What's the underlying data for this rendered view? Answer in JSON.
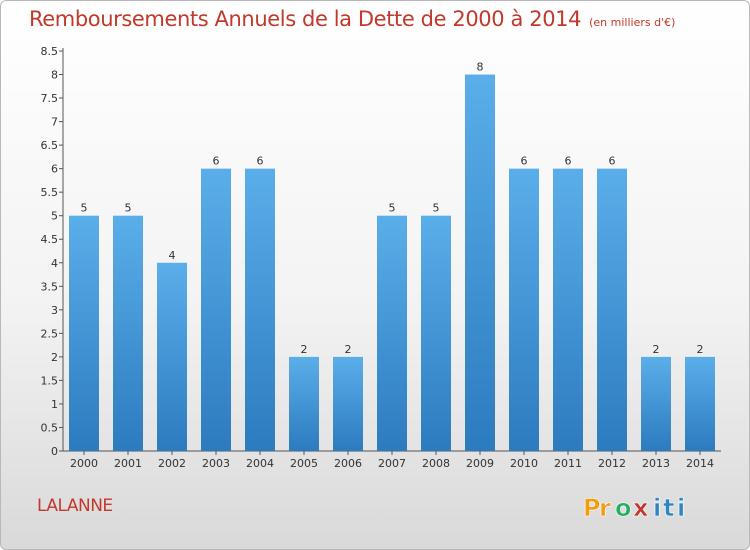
{
  "chart_data": {
    "type": "bar",
    "title": "Remboursements Annuels de la Dette de 2000 à 2014",
    "subtitle": "(en milliers d'€)",
    "categories": [
      "2000",
      "2001",
      "2002",
      "2003",
      "2004",
      "2005",
      "2006",
      "2007",
      "2008",
      "2009",
      "2010",
      "2011",
      "2012",
      "2013",
      "2014"
    ],
    "values": [
      5,
      5,
      4,
      6,
      6,
      2,
      2,
      5,
      5,
      8,
      6,
      6,
      6,
      2,
      2
    ],
    "ylim": [
      0,
      8.5
    ],
    "yticks": [
      0,
      0.5,
      1,
      1.5,
      2,
      2.5,
      3,
      3.5,
      4,
      4.5,
      5,
      5.5,
      6,
      6.5,
      7,
      7.5,
      8,
      8.5
    ],
    "ytick_labels": [
      "0",
      "0.5",
      "1",
      "1.5",
      "2",
      "2.5",
      "3",
      "3.5",
      "4",
      "4.5",
      "5",
      "5.5",
      "6",
      "6.5",
      "7",
      "7.5",
      "8",
      "8.5"
    ],
    "grid": false,
    "bar_color": "#4a9de0"
  },
  "commune": "LALANNE",
  "brand": {
    "name": "Proxiti",
    "letters": [
      "P",
      "r",
      "o",
      "x",
      "i",
      "t",
      "i"
    ],
    "colors": [
      "#f39c12",
      "#f39c12",
      "#27ae60",
      "#c0392b",
      "#2e86c1",
      "#2e86c1",
      "#2e86c1"
    ]
  }
}
